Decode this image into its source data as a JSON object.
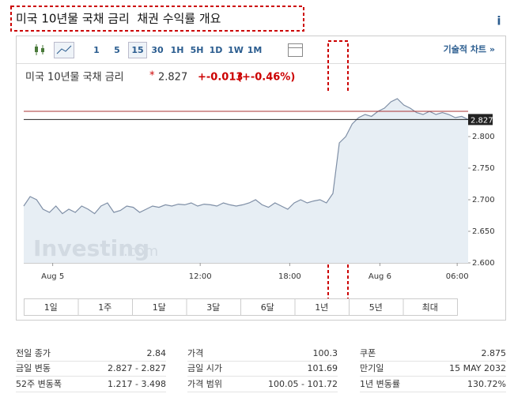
{
  "title": "미국 10년물 국채 금리  채권 수익률 개요",
  "info_icon": "i",
  "toolbar": {
    "intervals": [
      "1",
      "5",
      "15",
      "30",
      "1H",
      "5H",
      "1D",
      "1W",
      "1M"
    ],
    "technical": "기술적 차트 »"
  },
  "quote": {
    "name": "미국 10년물 국채 금리",
    "marker": "*",
    "price": "2.827",
    "change": "+-0.013",
    "change_pct": "(+-0.46%)"
  },
  "chart_data": {
    "type": "area",
    "watermark": "Investing",
    "watermark_suffix": ".com",
    "color": "#7f8fa6",
    "x": [
      0,
      1,
      2,
      3,
      4,
      5,
      6,
      7,
      8,
      9,
      10,
      11,
      12,
      13,
      14,
      15,
      16,
      17,
      18,
      19,
      20,
      21,
      22,
      23,
      24,
      25,
      26,
      27,
      28,
      29,
      30,
      31,
      32,
      33,
      34,
      35,
      36,
      37,
      38,
      39,
      40,
      41,
      42,
      43,
      44,
      45,
      46,
      47,
      48,
      49,
      50,
      51,
      52,
      53,
      54,
      55,
      56,
      57,
      58,
      59,
      60,
      61,
      62,
      63,
      64,
      65,
      66,
      67,
      68,
      69
    ],
    "values": [
      2.69,
      2.705,
      2.7,
      2.685,
      2.68,
      2.69,
      2.678,
      2.685,
      2.68,
      2.69,
      2.685,
      2.678,
      2.69,
      2.695,
      2.68,
      2.683,
      2.69,
      2.688,
      2.68,
      2.685,
      2.69,
      2.688,
      2.692,
      2.69,
      2.693,
      2.692,
      2.695,
      2.69,
      2.693,
      2.692,
      2.69,
      2.695,
      2.692,
      2.69,
      2.692,
      2.695,
      2.7,
      2.692,
      2.688,
      2.695,
      2.69,
      2.685,
      2.695,
      2.7,
      2.695,
      2.698,
      2.7,
      2.695,
      2.71,
      2.79,
      2.8,
      2.82,
      2.83,
      2.835,
      2.832,
      2.84,
      2.845,
      2.855,
      2.86,
      2.85,
      2.845,
      2.838,
      2.835,
      2.84,
      2.835,
      2.838,
      2.835,
      2.83,
      2.832,
      2.827
    ],
    "xlim": [
      0,
      69
    ],
    "xticks": [
      {
        "value": 4.5,
        "label": "Aug 5"
      },
      {
        "value": 27.4,
        "label": "12:00"
      },
      {
        "value": 41.3,
        "label": "18:00"
      },
      {
        "value": 55.3,
        "label": "Aug 6"
      },
      {
        "value": 67.3,
        "label": "06:00"
      }
    ],
    "ylim": [
      2.6,
      2.87
    ],
    "yticks": [
      {
        "value": 2.6,
        "label": "2.600"
      },
      {
        "value": 2.65,
        "label": "2.650"
      },
      {
        "value": 2.7,
        "label": "2.700"
      },
      {
        "value": 2.75,
        "label": "2.750"
      },
      {
        "value": 2.8,
        "label": "2.800"
      }
    ],
    "current_line": 2.827,
    "prev_close_line": 2.84
  },
  "ranges": [
    "1일",
    "1주",
    "1달",
    "3달",
    "6달",
    "1년",
    "5년",
    "최대"
  ],
  "stats": [
    [
      {
        "label": "전일 종가",
        "value": "2.84"
      },
      {
        "label": "금일 변동",
        "value": "2.827 - 2.827"
      },
      {
        "label": "52주 변동폭",
        "value": "1.217 - 3.498"
      }
    ],
    [
      {
        "label": "가격",
        "value": "100.3"
      },
      {
        "label": "금일 시가",
        "value": "101.69"
      },
      {
        "label": "가격 범위",
        "value": "100.05 - 101.72"
      }
    ],
    [
      {
        "label": "쿠폰",
        "value": "2.875"
      },
      {
        "label": "만기일",
        "value": "15 MAY 2032"
      },
      {
        "label": "1년 변동률",
        "value": "130.72%"
      }
    ]
  ]
}
